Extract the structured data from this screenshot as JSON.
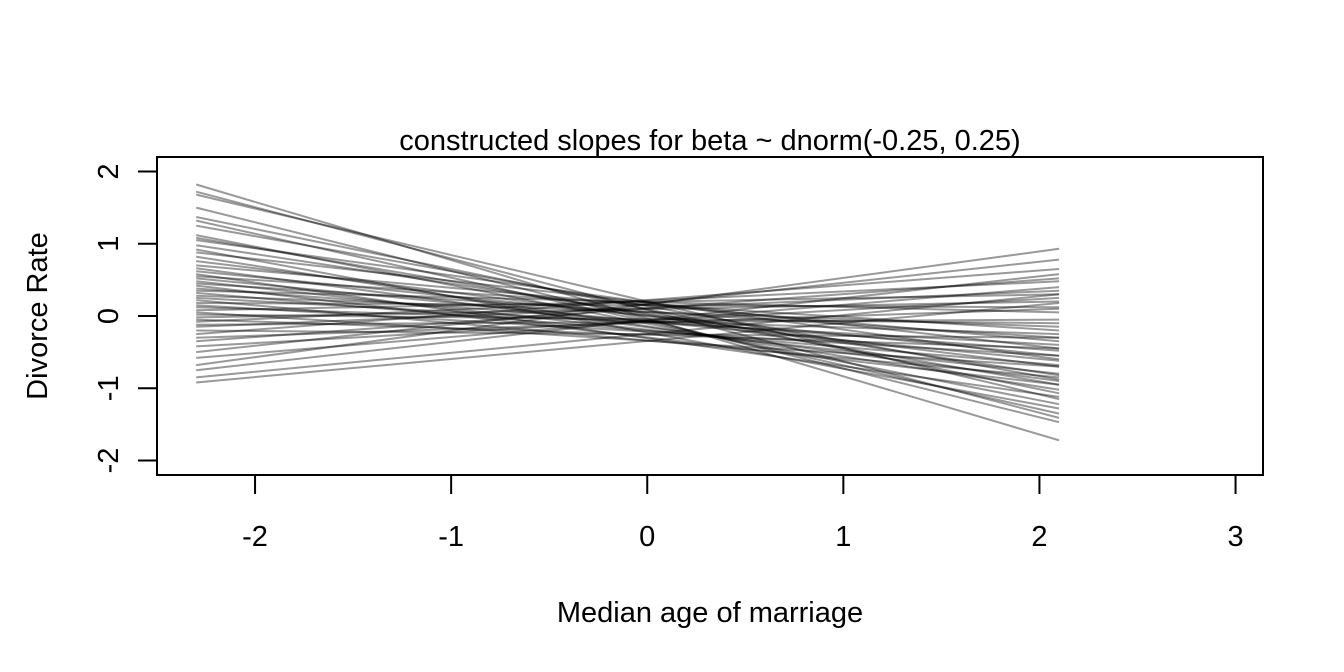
{
  "chart_data": {
    "type": "line",
    "title": "constructed slopes for beta ~ dnorm(-0.25, 0.25)",
    "xlabel": "Median age of marriage",
    "ylabel": "Divorce Rate",
    "xlim": [
      -2.5,
      3.14
    ],
    "ylim": [
      -2.2,
      2.2
    ],
    "xticks": [
      -2,
      -1,
      0,
      1,
      2,
      3
    ],
    "yticks": [
      -2,
      -1,
      0,
      1,
      2
    ],
    "x": [
      -2.3,
      2.1
    ],
    "grid": false,
    "legend": "none",
    "line_color": "#000000",
    "line_opacity": 0.4,
    "series": [
      {
        "values": [
          1.82,
          -1.72
        ]
      },
      {
        "values": [
          1.72,
          -1.41
        ]
      },
      {
        "values": [
          1.68,
          -1.15
        ]
      },
      {
        "values": [
          1.5,
          -1.47
        ]
      },
      {
        "values": [
          1.37,
          -1.07
        ]
      },
      {
        "values": [
          1.32,
          -1.35
        ]
      },
      {
        "values": [
          1.25,
          -0.88
        ]
      },
      {
        "values": [
          1.12,
          -1.22
        ]
      },
      {
        "values": [
          1.08,
          -0.95
        ]
      },
      {
        "values": [
          1.05,
          -0.6
        ]
      },
      {
        "values": [
          0.98,
          -0.82
        ]
      },
      {
        "values": [
          0.92,
          -1.28
        ]
      },
      {
        "values": [
          0.88,
          -0.45
        ]
      },
      {
        "values": [
          0.82,
          -1.02
        ]
      },
      {
        "values": [
          0.76,
          -0.7
        ]
      },
      {
        "values": [
          0.7,
          -0.35
        ]
      },
      {
        "values": [
          0.66,
          -0.9
        ]
      },
      {
        "values": [
          0.62,
          -0.55
        ]
      },
      {
        "values": [
          0.58,
          -1.12
        ]
      },
      {
        "values": [
          0.55,
          -0.2
        ]
      },
      {
        "values": [
          0.52,
          -0.62
        ]
      },
      {
        "values": [
          0.48,
          -0.8
        ]
      },
      {
        "values": [
          0.45,
          -0.3
        ]
      },
      {
        "values": [
          0.42,
          -0.95
        ]
      },
      {
        "values": [
          0.38,
          -0.48
        ]
      },
      {
        "values": [
          0.35,
          0.05
        ]
      },
      {
        "values": [
          0.32,
          -0.68
        ]
      },
      {
        "values": [
          0.28,
          -0.15
        ]
      },
      {
        "values": [
          0.25,
          -0.4
        ]
      },
      {
        "values": [
          0.22,
          -0.85
        ]
      },
      {
        "values": [
          0.18,
          0.12
        ]
      },
      {
        "values": [
          0.15,
          -0.55
        ]
      },
      {
        "values": [
          0.12,
          -0.25
        ]
      },
      {
        "values": [
          0.08,
          0.3
        ]
      },
      {
        "values": [
          0.05,
          -0.7
        ]
      },
      {
        "values": [
          0.02,
          -0.1
        ]
      },
      {
        "values": [
          -0.02,
          0.2
        ]
      },
      {
        "values": [
          -0.05,
          -0.45
        ]
      },
      {
        "values": [
          -0.08,
          0.48
        ]
      },
      {
        "values": [
          -0.12,
          -0.05
        ]
      },
      {
        "values": [
          -0.15,
          0.35
        ]
      },
      {
        "values": [
          -0.2,
          -0.3
        ]
      },
      {
        "values": [
          -0.25,
          0.65
        ]
      },
      {
        "values": [
          -0.3,
          0.1
        ]
      },
      {
        "values": [
          -0.35,
          0.52
        ]
      },
      {
        "values": [
          -0.42,
          0.25
        ]
      },
      {
        "values": [
          -0.5,
          0.78
        ]
      },
      {
        "values": [
          -0.58,
          0.4
        ]
      },
      {
        "values": [
          -0.68,
          0.93
        ]
      },
      {
        "values": [
          -0.75,
          0.58
        ]
      },
      {
        "values": [
          -0.85,
          0.3
        ]
      },
      {
        "values": [
          -0.92,
          0.18
        ]
      }
    ]
  }
}
